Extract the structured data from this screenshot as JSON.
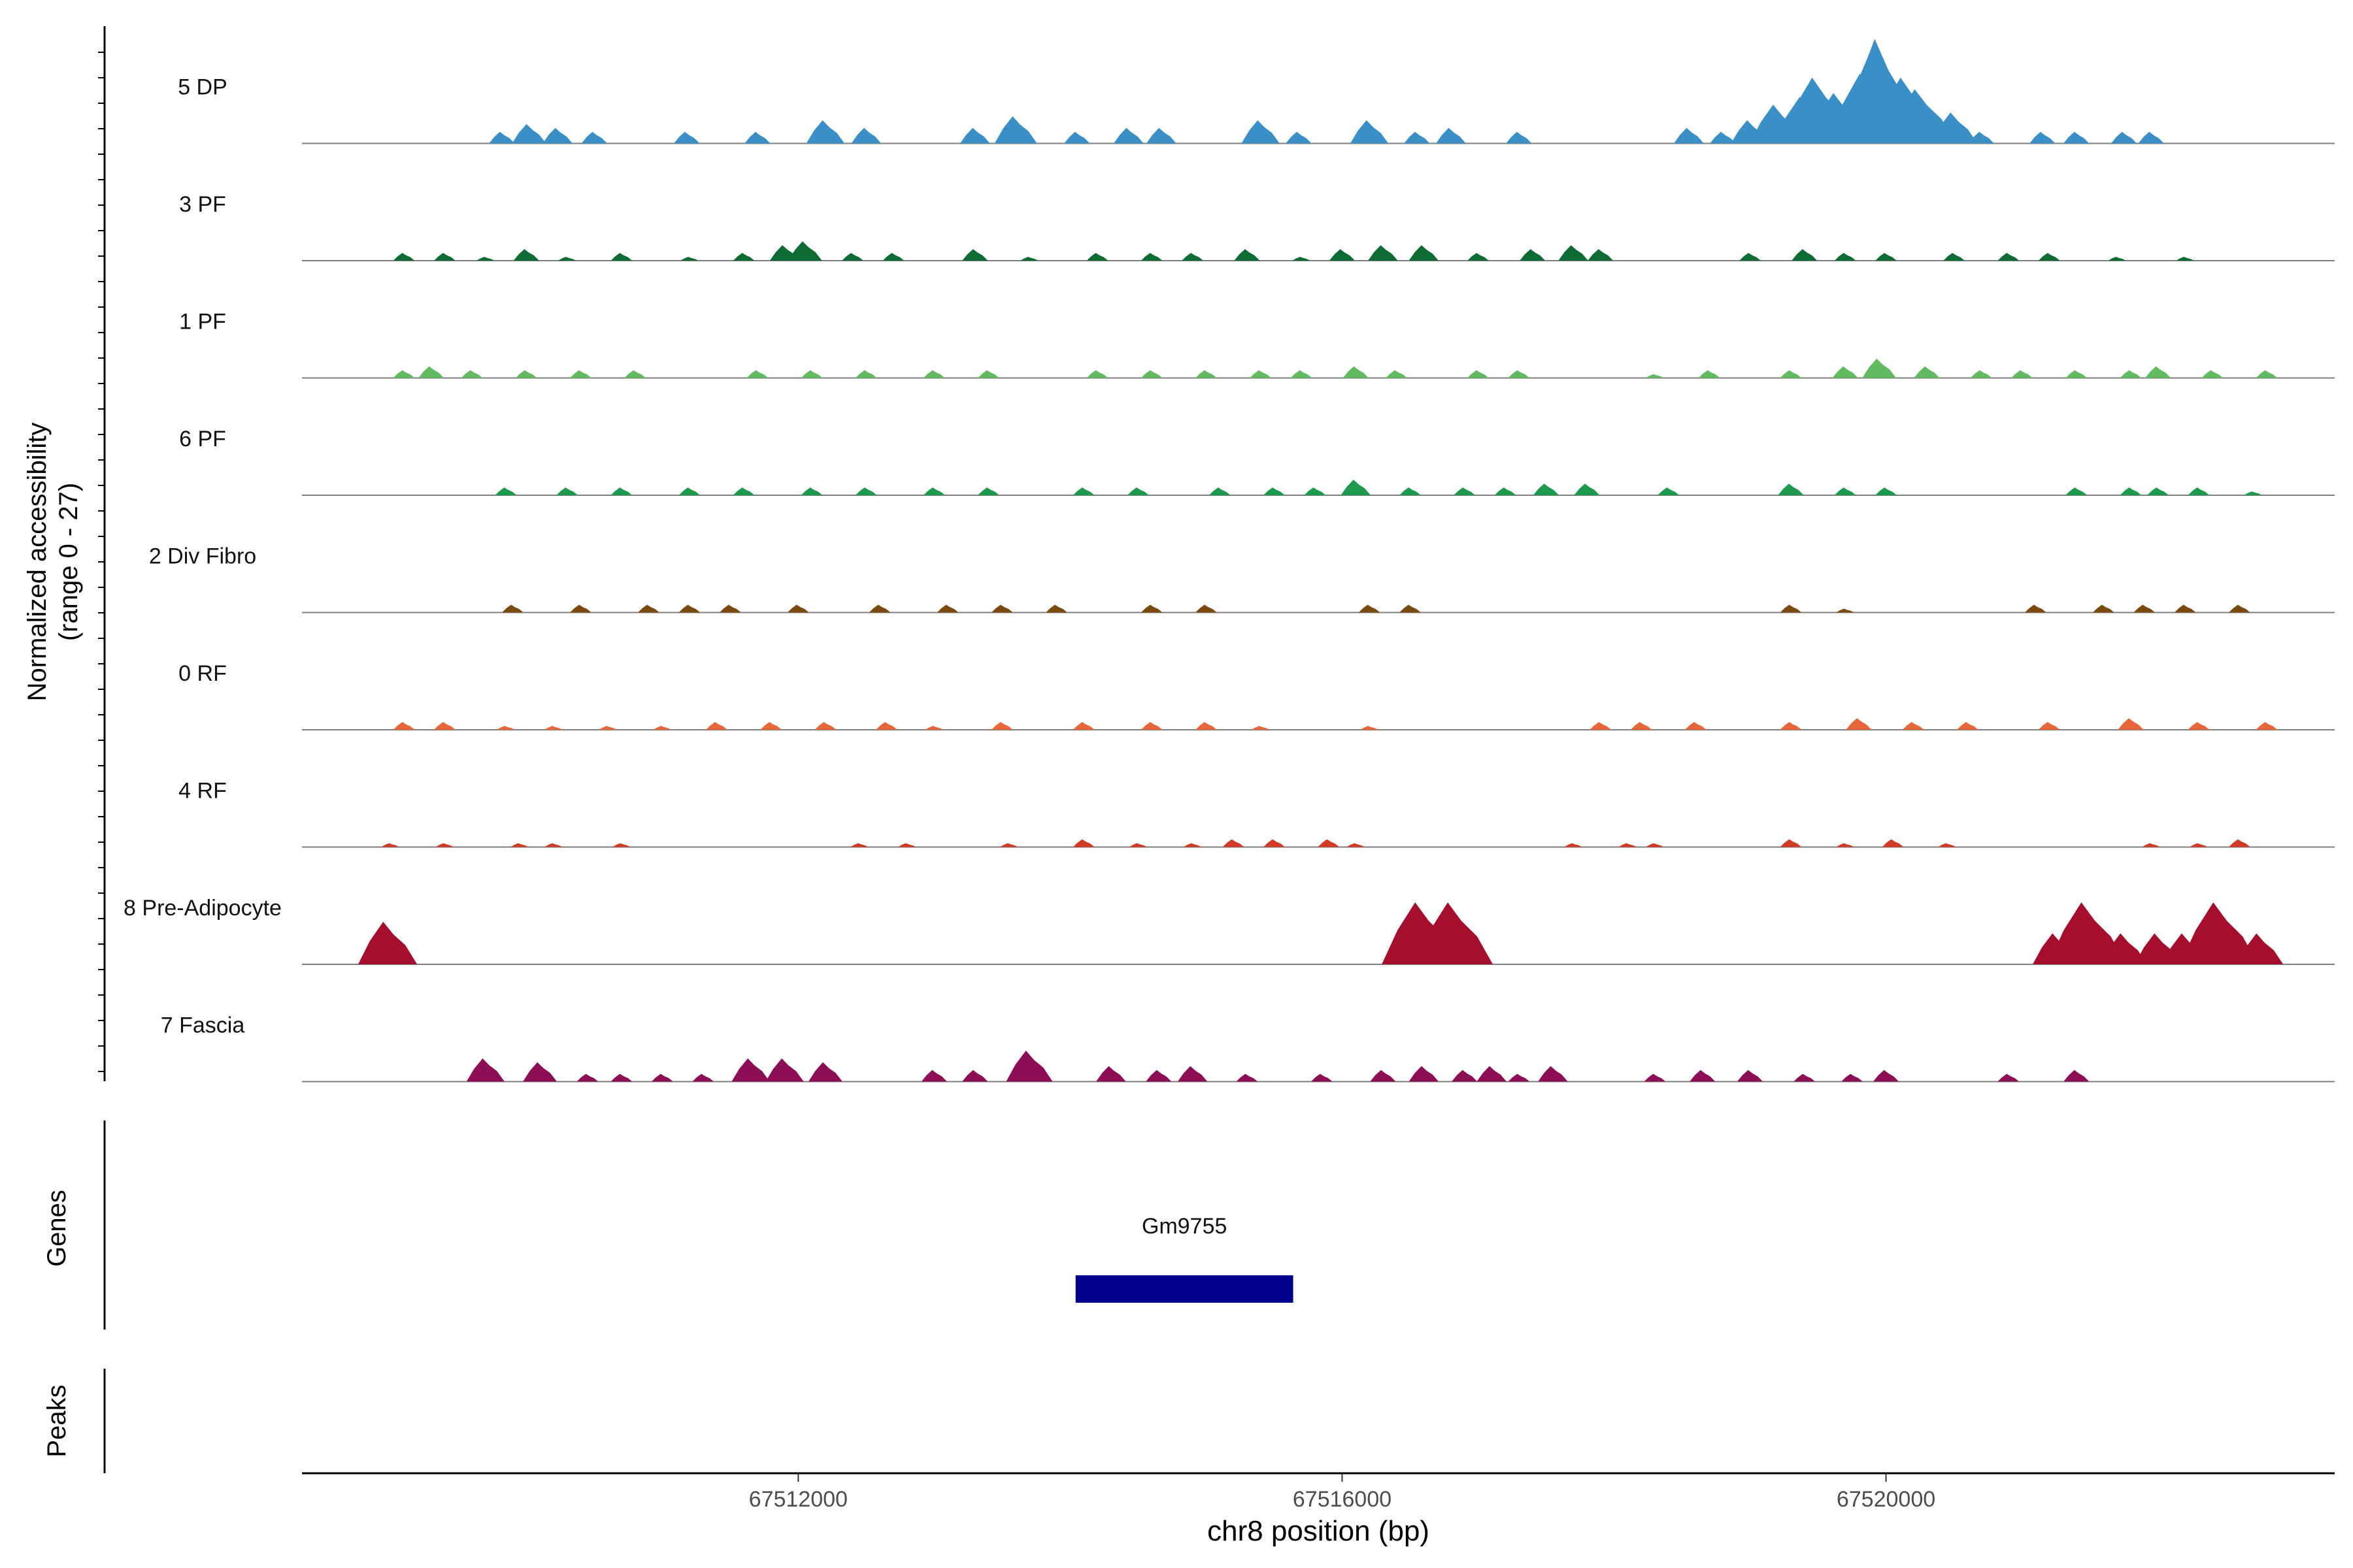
{
  "chart_data": {
    "type": "area",
    "chromosome": "chr8",
    "xlabel": "chr8 position (bp)",
    "ylabel_line1": "Normalized accessibility",
    "ylabel_line2": "(range 0 - 27)",
    "ylim": [
      0,
      27
    ],
    "xlim": [
      67508350,
      67523300
    ],
    "xticks": [
      67512000,
      67516000,
      67520000
    ],
    "xtick_labels": [
      "67512000",
      "67516000",
      "67520000"
    ],
    "genes_label": "Genes",
    "peaks_label": "Peaks",
    "genes": [
      {
        "name": "Gm9755",
        "start": 67514040,
        "end": 67515640,
        "color": "#00008B"
      }
    ],
    "series": [
      {
        "name": "5 DP",
        "color": "#3A8FC7",
        "points": [
          [
            67509820,
            3
          ],
          [
            67510020,
            5
          ],
          [
            67510230,
            4
          ],
          [
            67510500,
            3
          ],
          [
            67511180,
            3
          ],
          [
            67511700,
            3
          ],
          [
            67512200,
            6
          ],
          [
            67512500,
            4
          ],
          [
            67513300,
            4
          ],
          [
            67513600,
            7
          ],
          [
            67514050,
            3
          ],
          [
            67514430,
            4
          ],
          [
            67514670,
            4
          ],
          [
            67515400,
            6
          ],
          [
            67515680,
            3
          ],
          [
            67516200,
            6
          ],
          [
            67516550,
            3
          ],
          [
            67516800,
            4
          ],
          [
            67517300,
            3
          ],
          [
            67518550,
            4
          ],
          [
            67518800,
            3
          ],
          [
            67519000,
            6
          ],
          [
            67519200,
            10
          ],
          [
            67519400,
            12
          ],
          [
            67519500,
            17
          ],
          [
            67519650,
            13
          ],
          [
            67519750,
            11
          ],
          [
            67519850,
            18
          ],
          [
            67519930,
            24
          ],
          [
            67519960,
            27
          ],
          [
            67520000,
            22
          ],
          [
            67520150,
            17
          ],
          [
            67520250,
            14
          ],
          [
            67520350,
            7
          ],
          [
            67520500,
            8
          ],
          [
            67520700,
            3
          ],
          [
            67521150,
            3
          ],
          [
            67521400,
            3
          ],
          [
            67521750,
            3
          ],
          [
            67521950,
            3
          ]
        ]
      },
      {
        "name": "3 PF",
        "color": "#0E6B34",
        "points": [
          [
            67509100,
            2
          ],
          [
            67509400,
            2
          ],
          [
            67509700,
            1
          ],
          [
            67510000,
            3
          ],
          [
            67510300,
            1
          ],
          [
            67510700,
            2
          ],
          [
            67511200,
            1
          ],
          [
            67511600,
            2
          ],
          [
            67511900,
            4
          ],
          [
            67512050,
            5
          ],
          [
            67512400,
            2
          ],
          [
            67512700,
            2
          ],
          [
            67513300,
            3
          ],
          [
            67513700,
            1
          ],
          [
            67514200,
            2
          ],
          [
            67514600,
            2
          ],
          [
            67514900,
            2
          ],
          [
            67515300,
            3
          ],
          [
            67515700,
            1
          ],
          [
            67516000,
            3
          ],
          [
            67516300,
            4
          ],
          [
            67516600,
            4
          ],
          [
            67517000,
            2
          ],
          [
            67517400,
            3
          ],
          [
            67517700,
            4
          ],
          [
            67517900,
            3
          ],
          [
            67519000,
            2
          ],
          [
            67519400,
            3
          ],
          [
            67519700,
            2
          ],
          [
            67520000,
            2
          ],
          [
            67520500,
            2
          ],
          [
            67520900,
            2
          ],
          [
            67521200,
            2
          ],
          [
            67521700,
            1
          ],
          [
            67522200,
            1
          ]
        ]
      },
      {
        "name": "1 PF",
        "color": "#63BB61",
        "points": [
          [
            67509100,
            2
          ],
          [
            67509300,
            3
          ],
          [
            67509600,
            2
          ],
          [
            67510000,
            2
          ],
          [
            67510400,
            2
          ],
          [
            67510800,
            2
          ],
          [
            67511700,
            2
          ],
          [
            67512100,
            2
          ],
          [
            67512500,
            2
          ],
          [
            67513000,
            2
          ],
          [
            67513400,
            2
          ],
          [
            67514200,
            2
          ],
          [
            67514600,
            2
          ],
          [
            67515000,
            2
          ],
          [
            67515400,
            2
          ],
          [
            67515700,
            2
          ],
          [
            67516100,
            3
          ],
          [
            67516400,
            2
          ],
          [
            67517000,
            2
          ],
          [
            67517300,
            2
          ],
          [
            67518300,
            1
          ],
          [
            67518700,
            2
          ],
          [
            67519300,
            2
          ],
          [
            67519700,
            3
          ],
          [
            67519950,
            5
          ],
          [
            67520300,
            3
          ],
          [
            67520700,
            2
          ],
          [
            67521000,
            2
          ],
          [
            67521400,
            2
          ],
          [
            67521800,
            2
          ],
          [
            67522000,
            3
          ],
          [
            67522400,
            2
          ],
          [
            67522800,
            2
          ]
        ]
      },
      {
        "name": "6 PF",
        "color": "#1E9A4E",
        "points": [
          [
            67509850,
            2
          ],
          [
            67510300,
            2
          ],
          [
            67510700,
            2
          ],
          [
            67511200,
            2
          ],
          [
            67511600,
            2
          ],
          [
            67512100,
            2
          ],
          [
            67512500,
            2
          ],
          [
            67513000,
            2
          ],
          [
            67513400,
            2
          ],
          [
            67514100,
            2
          ],
          [
            67514500,
            2
          ],
          [
            67515100,
            2
          ],
          [
            67515500,
            2
          ],
          [
            67515800,
            2
          ],
          [
            67516100,
            4
          ],
          [
            67516500,
            2
          ],
          [
            67516900,
            2
          ],
          [
            67517200,
            2
          ],
          [
            67517500,
            3
          ],
          [
            67517800,
            3
          ],
          [
            67518400,
            2
          ],
          [
            67519300,
            3
          ],
          [
            67519700,
            2
          ],
          [
            67520000,
            2
          ],
          [
            67521400,
            2
          ],
          [
            67521800,
            2
          ],
          [
            67522000,
            2
          ],
          [
            67522300,
            2
          ],
          [
            67522700,
            1
          ]
        ]
      },
      {
        "name": "2 Div Fibro",
        "color": "#7A4A0E",
        "points": [
          [
            67509900,
            2
          ],
          [
            67510400,
            2
          ],
          [
            67510900,
            2
          ],
          [
            67511200,
            2
          ],
          [
            67511500,
            2
          ],
          [
            67512000,
            2
          ],
          [
            67512600,
            2
          ],
          [
            67513100,
            2
          ],
          [
            67513500,
            2
          ],
          [
            67513900,
            2
          ],
          [
            67514600,
            2
          ],
          [
            67515000,
            2
          ],
          [
            67516200,
            2
          ],
          [
            67516500,
            2
          ],
          [
            67519300,
            2
          ],
          [
            67519700,
            1
          ],
          [
            67521100,
            2
          ],
          [
            67521600,
            2
          ],
          [
            67521900,
            2
          ],
          [
            67522200,
            2
          ],
          [
            67522600,
            2
          ]
        ]
      },
      {
        "name": "0 RF",
        "color": "#E8673A",
        "points": [
          [
            67509100,
            2
          ],
          [
            67509400,
            2
          ],
          [
            67509850,
            1
          ],
          [
            67510200,
            1
          ],
          [
            67510600,
            1
          ],
          [
            67511000,
            1
          ],
          [
            67511400,
            2
          ],
          [
            67511800,
            2
          ],
          [
            67512200,
            2
          ],
          [
            67512650,
            2
          ],
          [
            67513000,
            1
          ],
          [
            67513500,
            2
          ],
          [
            67514100,
            2
          ],
          [
            67514600,
            2
          ],
          [
            67515000,
            2
          ],
          [
            67515400,
            1
          ],
          [
            67516200,
            1
          ],
          [
            67517900,
            2
          ],
          [
            67518200,
            2
          ],
          [
            67518600,
            2
          ],
          [
            67519300,
            2
          ],
          [
            67519800,
            3
          ],
          [
            67520200,
            2
          ],
          [
            67520600,
            2
          ],
          [
            67521200,
            2
          ],
          [
            67521800,
            3
          ],
          [
            67522300,
            2
          ],
          [
            67522800,
            2
          ]
        ]
      },
      {
        "name": "4 RF",
        "color": "#D13A24",
        "points": [
          [
            67509000,
            1
          ],
          [
            67509400,
            1
          ],
          [
            67509950,
            1
          ],
          [
            67510200,
            1
          ],
          [
            67510700,
            1
          ],
          [
            67512450,
            1
          ],
          [
            67512800,
            1
          ],
          [
            67513550,
            1
          ],
          [
            67514100,
            2
          ],
          [
            67514500,
            1
          ],
          [
            67514900,
            1
          ],
          [
            67515200,
            2
          ],
          [
            67515500,
            2
          ],
          [
            67515900,
            2
          ],
          [
            67516100,
            1
          ],
          [
            67517700,
            1
          ],
          [
            67518100,
            1
          ],
          [
            67518300,
            1
          ],
          [
            67519300,
            2
          ],
          [
            67519700,
            1
          ],
          [
            67520050,
            2
          ],
          [
            67520450,
            1
          ],
          [
            67521950,
            1
          ],
          [
            67522300,
            1
          ],
          [
            67522600,
            2
          ]
        ]
      },
      {
        "name": "8 Pre-Adipocyte",
        "color": "#A50F2D",
        "points": [
          [
            67508980,
            11
          ],
          [
            67516580,
            16
          ],
          [
            67516820,
            16
          ],
          [
            67521250,
            8
          ],
          [
            67521480,
            16
          ],
          [
            67521750,
            8
          ],
          [
            67522000,
            8
          ],
          [
            67522200,
            8
          ],
          [
            67522450,
            16
          ],
          [
            67522750,
            8
          ]
        ]
      },
      {
        "name": "7 Fascia",
        "color": "#8C0E54",
        "points": [
          [
            67509700,
            6
          ],
          [
            67510100,
            5
          ],
          [
            67510450,
            2
          ],
          [
            67510700,
            2
          ],
          [
            67511000,
            2
          ],
          [
            67511300,
            2
          ],
          [
            67511650,
            6
          ],
          [
            67511900,
            6
          ],
          [
            67512200,
            5
          ],
          [
            67513000,
            3
          ],
          [
            67513300,
            3
          ],
          [
            67513700,
            8
          ],
          [
            67514300,
            4
          ],
          [
            67514650,
            3
          ],
          [
            67514900,
            4
          ],
          [
            67515300,
            2
          ],
          [
            67515850,
            2
          ],
          [
            67516300,
            3
          ],
          [
            67516600,
            4
          ],
          [
            67516900,
            3
          ],
          [
            67517100,
            4
          ],
          [
            67517300,
            2
          ],
          [
            67517550,
            4
          ],
          [
            67518300,
            2
          ],
          [
            67518650,
            3
          ],
          [
            67519000,
            3
          ],
          [
            67519400,
            2
          ],
          [
            67519750,
            2
          ],
          [
            67520000,
            3
          ],
          [
            67520900,
            2
          ],
          [
            67521400,
            3
          ]
        ]
      }
    ]
  }
}
